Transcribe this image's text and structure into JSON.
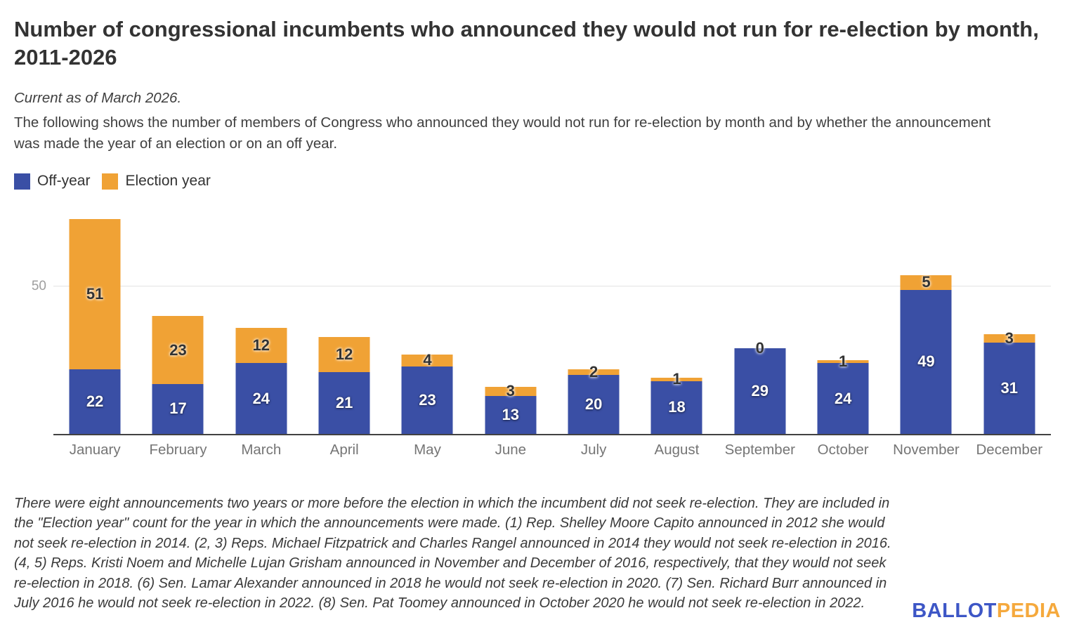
{
  "header": {
    "title": "Number of congressional incumbents who announced they would not run for re-election by month, 2011-2026",
    "subtitle": "Current as of March 2026.",
    "description": "The following shows the number of members of Congress who announced they would not run for re-election by month and by whether the announcement was made the year of an election or on an off year."
  },
  "legend": {
    "off_year_label": "Off-year",
    "election_year_label": "Election year"
  },
  "colors": {
    "off_year": "#3A4FA5",
    "election_year": "#F0A235",
    "gridline": "#E3E3E3",
    "axis": "#424242",
    "logo_blue": "#3D56C6",
    "logo_orange": "#F5A93D"
  },
  "chart_data": {
    "type": "bar",
    "stacked": true,
    "title": "Number of congressional incumbents who announced they would not run for re-election by month, 2011-2026",
    "xlabel": "",
    "ylabel": "",
    "categories": [
      "January",
      "February",
      "March",
      "April",
      "May",
      "June",
      "July",
      "August",
      "September",
      "October",
      "November",
      "December"
    ],
    "series": [
      {
        "name": "Off-year",
        "color_key": "off_year",
        "values": [
          22,
          17,
          24,
          21,
          23,
          13,
          20,
          18,
          29,
          24,
          49,
          31
        ]
      },
      {
        "name": "Election year",
        "color_key": "election_year",
        "values": [
          51,
          23,
          12,
          12,
          4,
          3,
          2,
          1,
          0,
          1,
          5,
          3
        ]
      }
    ],
    "totals": [
      73,
      40,
      36,
      33,
      27,
      16,
      22,
      19,
      29,
      25,
      54,
      34
    ],
    "y_tick_label": "50",
    "y_tick_value": 50,
    "ylim": [
      0,
      79.7
    ],
    "grid": "single horizontal gridline at 50",
    "legend_position": "top-left"
  },
  "footer": {
    "note": "There were eight announcements two years or more before the election in which the incumbent did not seek re-election. They are included in the \"Election year\" count for the year in which the announcements were made. (1) Rep. Shelley Moore Capito announced in 2012 she would not seek re-election in 2014. (2, 3) Reps. Michael Fitzpatrick and Charles Rangel announced in 2014 they would not seek re-election in 2016. (4, 5) Reps. Kristi Noem and Michelle Lujan Grisham announced in November and December of 2016, respectively, that they would not seek re-election in 2018. (6) Sen. Lamar Alexander announced in 2018 he would not seek re-election in 2020. (7) Sen. Richard Burr announced in July 2016 he would not seek re-election in 2022. (8) Sen. Pat Toomey announced in October 2020 he would not seek re-election in 2022.",
    "logo": {
      "part1": "BALLOT",
      "part2": "PEDIA"
    }
  }
}
